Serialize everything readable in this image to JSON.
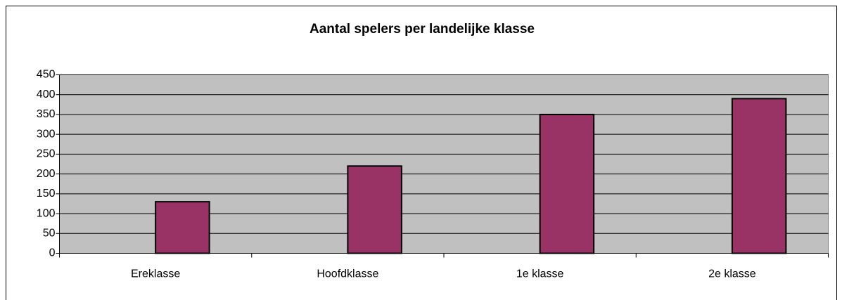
{
  "chart_data": {
    "type": "bar",
    "title": "Aantal spelers per landelijke klasse",
    "categories": [
      "Ereklasse",
      "Hoofdklasse",
      "1e klasse",
      "2e klasse"
    ],
    "values": [
      130,
      220,
      350,
      390
    ],
    "color": "#993366",
    "plot_background": "#c0c0c0",
    "ylim": [
      0,
      450
    ],
    "yticks": [
      0,
      50,
      100,
      150,
      200,
      250,
      300,
      350,
      400,
      450
    ],
    "grid": true
  }
}
